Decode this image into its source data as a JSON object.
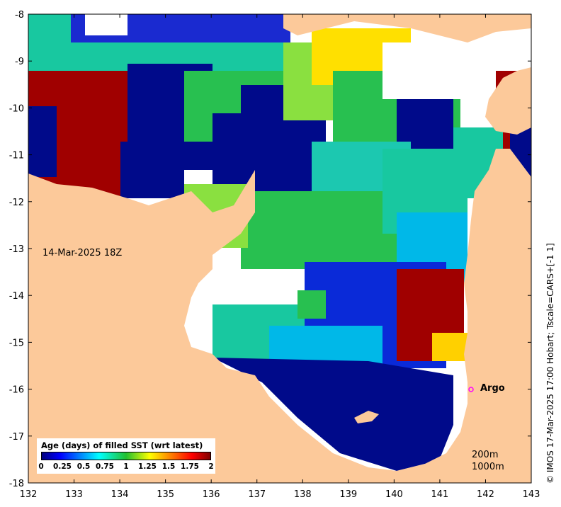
{
  "map": {
    "x_ticks": [
      "132",
      "133",
      "134",
      "135",
      "136",
      "137",
      "138",
      "139",
      "140",
      "141",
      "142",
      "143"
    ],
    "y_ticks": [
      "-8",
      "-9",
      "-10",
      "-11",
      "-12",
      "-13",
      "-14",
      "-15",
      "-16",
      "-17",
      "-18"
    ],
    "colors": {
      "land": "#fcc99a",
      "no_data": "#ffffff",
      "frame": "#000000",
      "argo_marker": "#ff00ff"
    }
  },
  "date_label": "14-Mar-2025 18Z",
  "argo": {
    "label": "Argo",
    "lon": 141.7,
    "lat": -16.0
  },
  "depth_legend": {
    "line1": "200m",
    "line2": "1000m"
  },
  "colorbar": {
    "title": "Age (days) of filled SST (wrt latest)",
    "tick_labels": [
      "0",
      "0.25",
      "0.5",
      "0.75",
      "1",
      "1.25",
      "1.5",
      "1.75",
      "2"
    ],
    "range": [
      0,
      2
    ]
  },
  "credit": "© IMOS 17-Mar-2025 17:00 Hobart; Tscale=CARS+[-1 1]"
}
